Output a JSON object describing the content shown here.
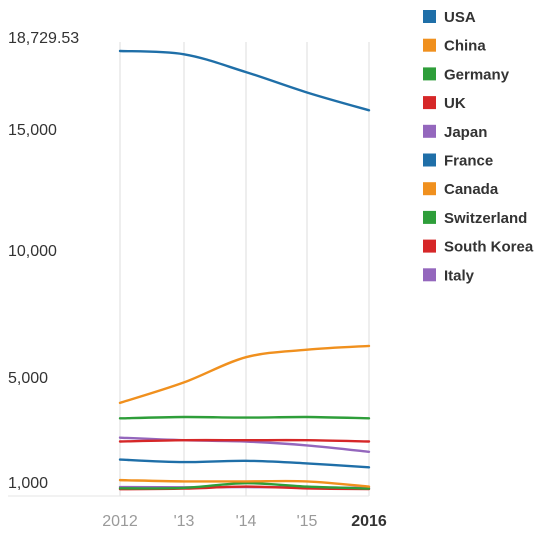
{
  "chart_data": {
    "type": "line",
    "title": "",
    "xlabel": "",
    "ylabel": "",
    "x": [
      "2012",
      "2013",
      "2014",
      "2015",
      "2016"
    ],
    "x_tick_labels": [
      "2012",
      "'13",
      "'14",
      "'15",
      "2016"
    ],
    "y_tick_values": [
      1000,
      5000,
      10000,
      15000,
      18729.53
    ],
    "y_tick_labels": [
      "1,000",
      "5,000",
      "10,000",
      "15,000",
      "18,729.53"
    ],
    "ylim": [
      1000,
      18729.53
    ],
    "grid": "vertical",
    "legend": "top-right",
    "series": [
      {
        "name": "USA",
        "color": "#1f6fa8",
        "values": [
          18729.53,
          18600,
          17900,
          17100,
          16400
        ]
      },
      {
        "name": "China",
        "color": "#f0901e",
        "values": [
          4500,
          5300,
          6300,
          6600,
          6750
        ]
      },
      {
        "name": "Germany",
        "color": "#2e9e3a",
        "values": [
          3900,
          3950,
          3930,
          3950,
          3900
        ]
      },
      {
        "name": "UK",
        "color": "#d62728",
        "values": [
          3000,
          3050,
          3050,
          3050,
          3000
        ]
      },
      {
        "name": "Japan",
        "color": "#9467bd",
        "values": [
          3150,
          3050,
          3000,
          2850,
          2600
        ]
      },
      {
        "name": "France",
        "color": "#1f6fa8",
        "values": [
          2300,
          2200,
          2250,
          2150,
          2000
        ]
      },
      {
        "name": "Canada",
        "color": "#f0901e",
        "values": [
          1500,
          1450,
          1450,
          1450,
          1250
        ]
      },
      {
        "name": "Switzerland",
        "color": "#2e9e3a",
        "values": [
          1180,
          1200,
          1380,
          1250,
          1170
        ]
      },
      {
        "name": "South Korea",
        "color": "#d62728",
        "values": [
          1150,
          1170,
          1250,
          1180,
          1150
        ]
      },
      {
        "name": "Italy",
        "color": "#9467bd",
        "values": [
          1230,
          1220,
          1230,
          1220,
          1200
        ]
      }
    ]
  }
}
